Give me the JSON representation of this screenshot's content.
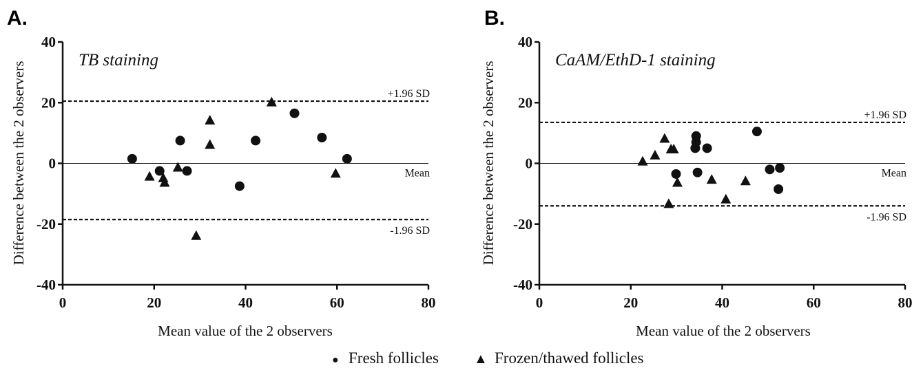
{
  "chart_data": [
    {
      "type": "scatter",
      "panel_label": "A.",
      "title": "TB staining",
      "xlabel": "Mean value of the 2 observers",
      "ylabel": "Difference between the 2 observers",
      "xlim": [
        0,
        80
      ],
      "ylim": [
        -40,
        40
      ],
      "xticks": [
        "0",
        "20",
        "40",
        "60",
        "80"
      ],
      "yticks": [
        "40",
        "20",
        "0",
        "-20",
        "-40"
      ],
      "reference_lines": [
        {
          "label": "+1.96 SD",
          "y": 20.5,
          "style": "dashed"
        },
        {
          "label": "Mean",
          "y": 0,
          "style": "solid"
        },
        {
          "label": "-1.96 SD",
          "y": -18.5,
          "style": "dashed"
        }
      ],
      "series": [
        {
          "name": "Fresh follicles",
          "marker": "circle",
          "x": [
            15.2,
            21.2,
            25.7,
            27.2,
            38.7,
            42.2,
            50.7,
            56.7,
            62.2
          ],
          "y": [
            1.5,
            -2.5,
            7.5,
            -2.5,
            -7.5,
            7.5,
            16.5,
            8.5,
            1.5
          ]
        },
        {
          "name": "Frozen/thawed follicles",
          "marker": "triangle",
          "x": [
            19.0,
            22.0,
            22.3,
            25.2,
            29.2,
            32.2,
            32.2,
            45.7,
            59.7
          ],
          "y": [
            -4.5,
            -5.0,
            -6.5,
            -1.5,
            -24.0,
            14.0,
            6.0,
            20.0,
            -3.5
          ]
        }
      ]
    },
    {
      "type": "scatter",
      "panel_label": "B.",
      "title": "CaAM/EthD-1 staining",
      "xlabel": "Mean value of the 2 observers",
      "ylabel": "Difference between the 2 observers",
      "xlim": [
        0,
        80
      ],
      "ylim": [
        -40,
        40
      ],
      "xticks": [
        "0",
        "20",
        "40",
        "60",
        "80"
      ],
      "yticks": [
        "40",
        "20",
        "0",
        "-20",
        "-40"
      ],
      "reference_lines": [
        {
          "label": "+1.96 SD",
          "y": 13.5,
          "style": "dashed"
        },
        {
          "label": "Mean",
          "y": 0,
          "style": "solid"
        },
        {
          "label": "-1.96 SD",
          "y": -14,
          "style": "dashed"
        }
      ],
      "series": [
        {
          "name": "Fresh follicles",
          "marker": "circle",
          "x": [
            29.9,
            34.1,
            34.3,
            34.3,
            34.6,
            36.7,
            47.6,
            50.4,
            52.3,
            52.6
          ],
          "y": [
            -3.5,
            5.0,
            7.0,
            9.0,
            -3.0,
            5.0,
            10.5,
            -2.0,
            -8.5,
            -1.5
          ]
        },
        {
          "name": "Frozen/thawed follicles",
          "marker": "triangle",
          "x": [
            22.6,
            25.3,
            27.4,
            28.3,
            28.8,
            29.4,
            30.2,
            37.7,
            40.8,
            45.1
          ],
          "y": [
            0.5,
            2.5,
            8.0,
            -13.5,
            4.5,
            4.5,
            -6.5,
            -5.5,
            -12.0,
            -6.0
          ]
        }
      ]
    }
  ],
  "legend": {
    "circle_symbol": "●",
    "triangle_symbol": "▲",
    "fresh_label": "Fresh follicles",
    "frozen_label": "Frozen/thawed follicles"
  }
}
